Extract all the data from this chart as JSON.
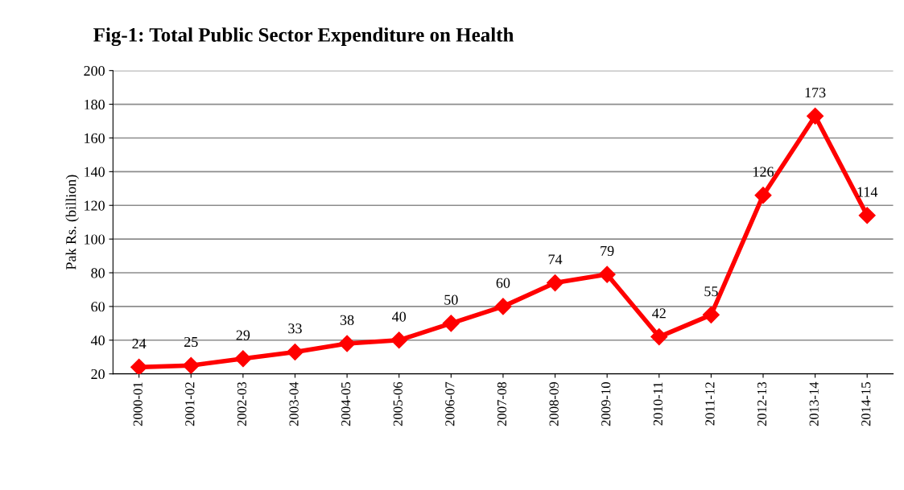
{
  "chart_data": {
    "type": "line",
    "title": "Fig-1: Total Public Sector Expenditure on Health",
    "ylabel": "Pak Rs. (billion)",
    "categories": [
      "2000-01",
      "2001-02",
      "2002-03",
      "2003-04",
      "2004-05",
      "2005-06",
      "2006-07",
      "2007-08",
      "2008-09",
      "2009-10",
      "2010-11",
      "2011-12",
      "2012-13",
      "2013-14",
      "2014-15"
    ],
    "series": [
      {
        "color": "#ff0000",
        "values": [
          24,
          25,
          29,
          33,
          38,
          40,
          50,
          60,
          74,
          79,
          42,
          55,
          126,
          173,
          114
        ]
      }
    ],
    "ylim": [
      20,
      200
    ],
    "yticks": [
      20,
      40,
      60,
      80,
      100,
      120,
      140,
      160,
      180,
      200
    ],
    "grid": "y",
    "marker": "diamond",
    "line_style": "solid",
    "data_labels": true,
    "legend": false
  }
}
